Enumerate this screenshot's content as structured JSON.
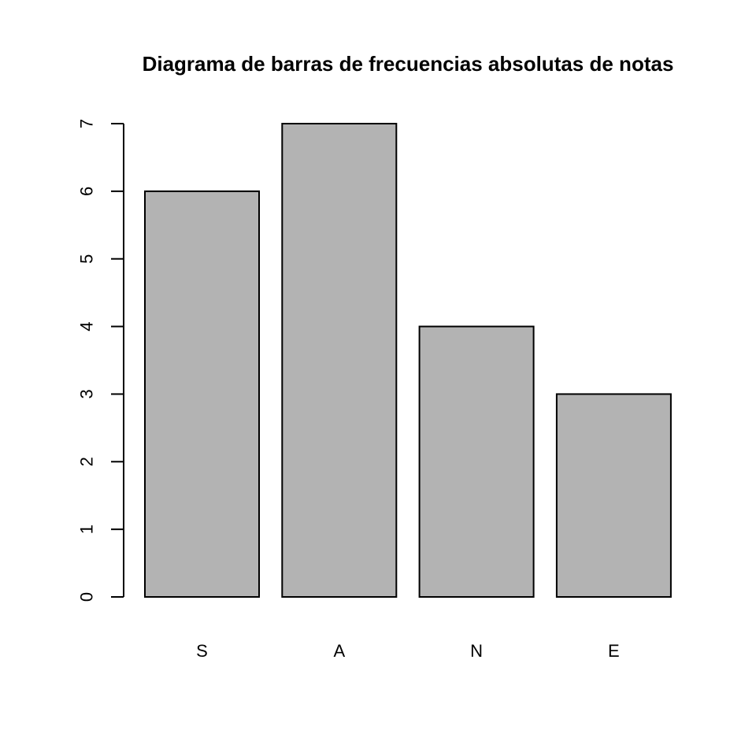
{
  "chart_data": {
    "type": "bar",
    "title": "Diagrama de barras de frecuencias absolutas de notas",
    "xlabel": "",
    "ylabel": "",
    "categories": [
      "S",
      "A",
      "N",
      "E"
    ],
    "values": [
      6,
      7,
      4,
      3
    ],
    "ylim": [
      0,
      7
    ],
    "yticks": [
      0,
      1,
      2,
      3,
      4,
      5,
      6,
      7
    ],
    "grid": false,
    "legend": "none",
    "bar_color": "#b3b3b3",
    "border_color": "#000000"
  }
}
